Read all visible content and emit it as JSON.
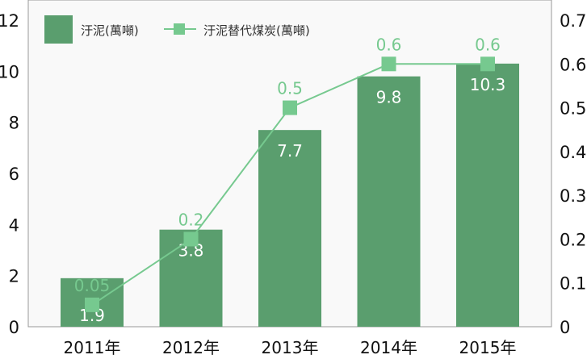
{
  "chart_data": {
    "type": "bar+line",
    "categories": [
      "2011年",
      "2012年",
      "2013年",
      "2014年",
      "2015年"
    ],
    "series": [
      {
        "name": "汙泥(萬噸)",
        "type": "bar",
        "axis": "left",
        "values": [
          1.9,
          3.8,
          7.7,
          9.8,
          10.3
        ],
        "labels": [
          "1.9",
          "3.8",
          "7.7",
          "9.8",
          "10.3"
        ],
        "color": "#5a9e6e"
      },
      {
        "name": "汙泥替代煤炭(萬噸)",
        "type": "line",
        "axis": "right",
        "values": [
          0.05,
          0.2,
          0.5,
          0.6,
          0.6
        ],
        "labels": [
          "0.05",
          "0.2",
          "0.5",
          "0.6",
          "0.6"
        ],
        "color": "#76c98f"
      }
    ],
    "y_left": {
      "range": [
        0,
        12
      ],
      "ticks": [
        "0",
        "2",
        "4",
        "6",
        "8",
        "10",
        "12"
      ]
    },
    "y_right": {
      "range": [
        0,
        0.7
      ],
      "ticks": [
        "0",
        "0.1",
        "0.2",
        "0.3",
        "0.4",
        "0.5",
        "0.6",
        "0.7"
      ]
    },
    "legend": {
      "placement": "top-left"
    },
    "grid": false,
    "plot_background": "#f9f9f9"
  }
}
